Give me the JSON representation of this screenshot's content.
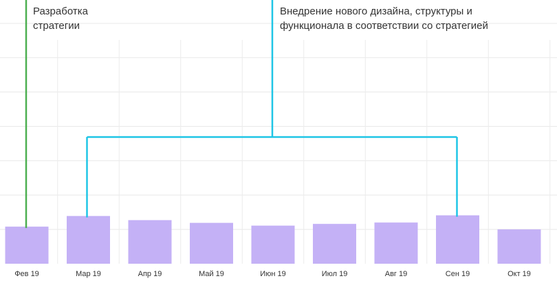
{
  "chart_data": {
    "type": "bar",
    "categories": [
      "Фев 19",
      "Мар 19",
      "Апр 19",
      "Май 19",
      "Июн 19",
      "Июл 19",
      "Авг 19",
      "Сен 19",
      "Окт 19"
    ],
    "values": [
      1.08,
      1.39,
      1.27,
      1.19,
      1.11,
      1.16,
      1.2,
      1.41,
      1.0
    ],
    "ylim": [
      0,
      7.4
    ],
    "grid": true,
    "bar_color": "#c4b1f6",
    "annotations": [
      {
        "id": "strategy",
        "lines": [
          "Разработка",
          "стратегии"
        ],
        "color": "#4caf50",
        "categories": [
          "Фев 19"
        ]
      },
      {
        "id": "redesign",
        "lines": [
          "Внедрение нового дизайна, структуры и",
          "функционала в соответствии со стратегией"
        ],
        "color": "#1ec5e6",
        "categories": [
          "Мар 19",
          "Сен 19"
        ],
        "bracket_level": 4.0
      }
    ]
  }
}
